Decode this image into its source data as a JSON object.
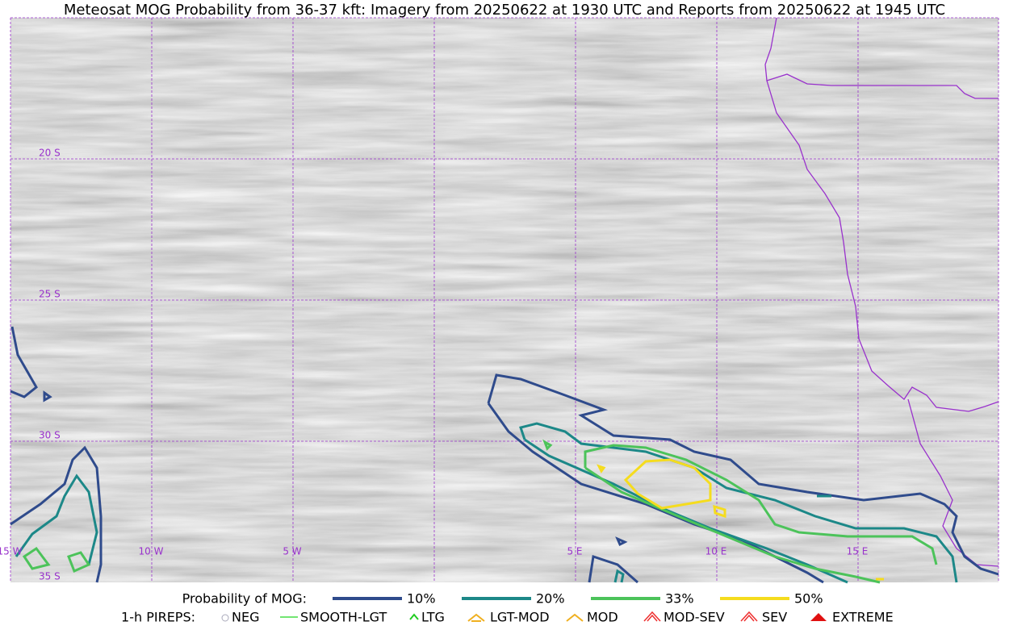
{
  "header": {
    "title": "Meteosat MOG Probability from 36-37 kft: Imagery from 20250622 at 1930 UTC and Reports from 20250622 at 1945 UTC"
  },
  "map": {
    "lat_labels": [
      "20 S",
      "25 S",
      "30 S",
      "35 S"
    ],
    "lon_labels": [
      "15 W",
      "10 W",
      "5 W",
      "5 E",
      "10 E",
      "15 E"
    ]
  },
  "legend": {
    "probability": {
      "label": "Probability of MOG:",
      "items": [
        "10%",
        "20%",
        "33%",
        "50%"
      ]
    },
    "pireps": {
      "label": "1-h PIREPS:",
      "items": [
        "NEG",
        "SMOOTH-LGT",
        "LTG",
        "LGT-MOD",
        "MOD",
        "MOD-SEV",
        "SEV",
        "EXTREME"
      ]
    }
  }
}
